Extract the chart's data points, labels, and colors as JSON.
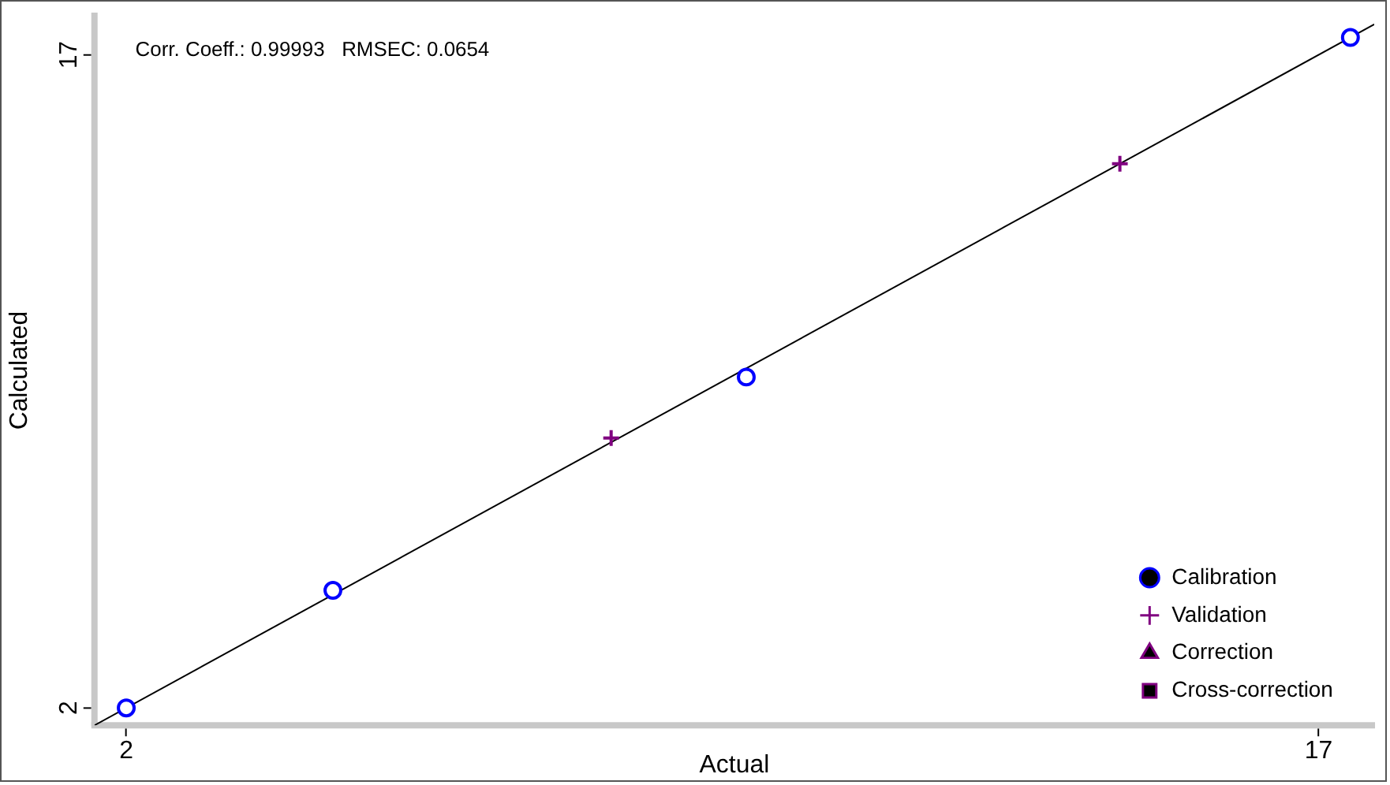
{
  "chart_data": {
    "type": "scatter",
    "xlabel": "Actual",
    "ylabel": "Calculated",
    "annotations": [
      "Corr. Coeff.: 0.99993   RMSEC: 0.0654"
    ],
    "xlim": [
      1.6,
      17.7
    ],
    "xticks": [
      2,
      17
    ],
    "ylim": [
      1.6,
      17.9
    ],
    "yticks": [
      2,
      17
    ],
    "grid": false,
    "legend": "bottom right",
    "series": [
      {
        "name": "Calibration",
        "color": "#0000ff",
        "marker": "circle",
        "x": [
          2.0,
          4.6,
          9.8,
          17.4
        ],
        "values": [
          2.0,
          4.7,
          9.6,
          17.4
        ]
      },
      {
        "name": "Validation",
        "color": "#800080",
        "marker": "cross",
        "x": [
          8.1,
          14.5
        ],
        "values": [
          8.2,
          14.5
        ]
      },
      {
        "name": "Correction",
        "color": "#800080",
        "marker": "triangle"
      },
      {
        "name": "Cross-correction",
        "color": "#800080",
        "marker": "square"
      },
      {
        "type": "line",
        "color": "#000000",
        "marker": "none",
        "line_style": "solid",
        "x": [
          1.6,
          17.7
        ],
        "values": [
          1.6,
          17.7
        ]
      }
    ]
  }
}
